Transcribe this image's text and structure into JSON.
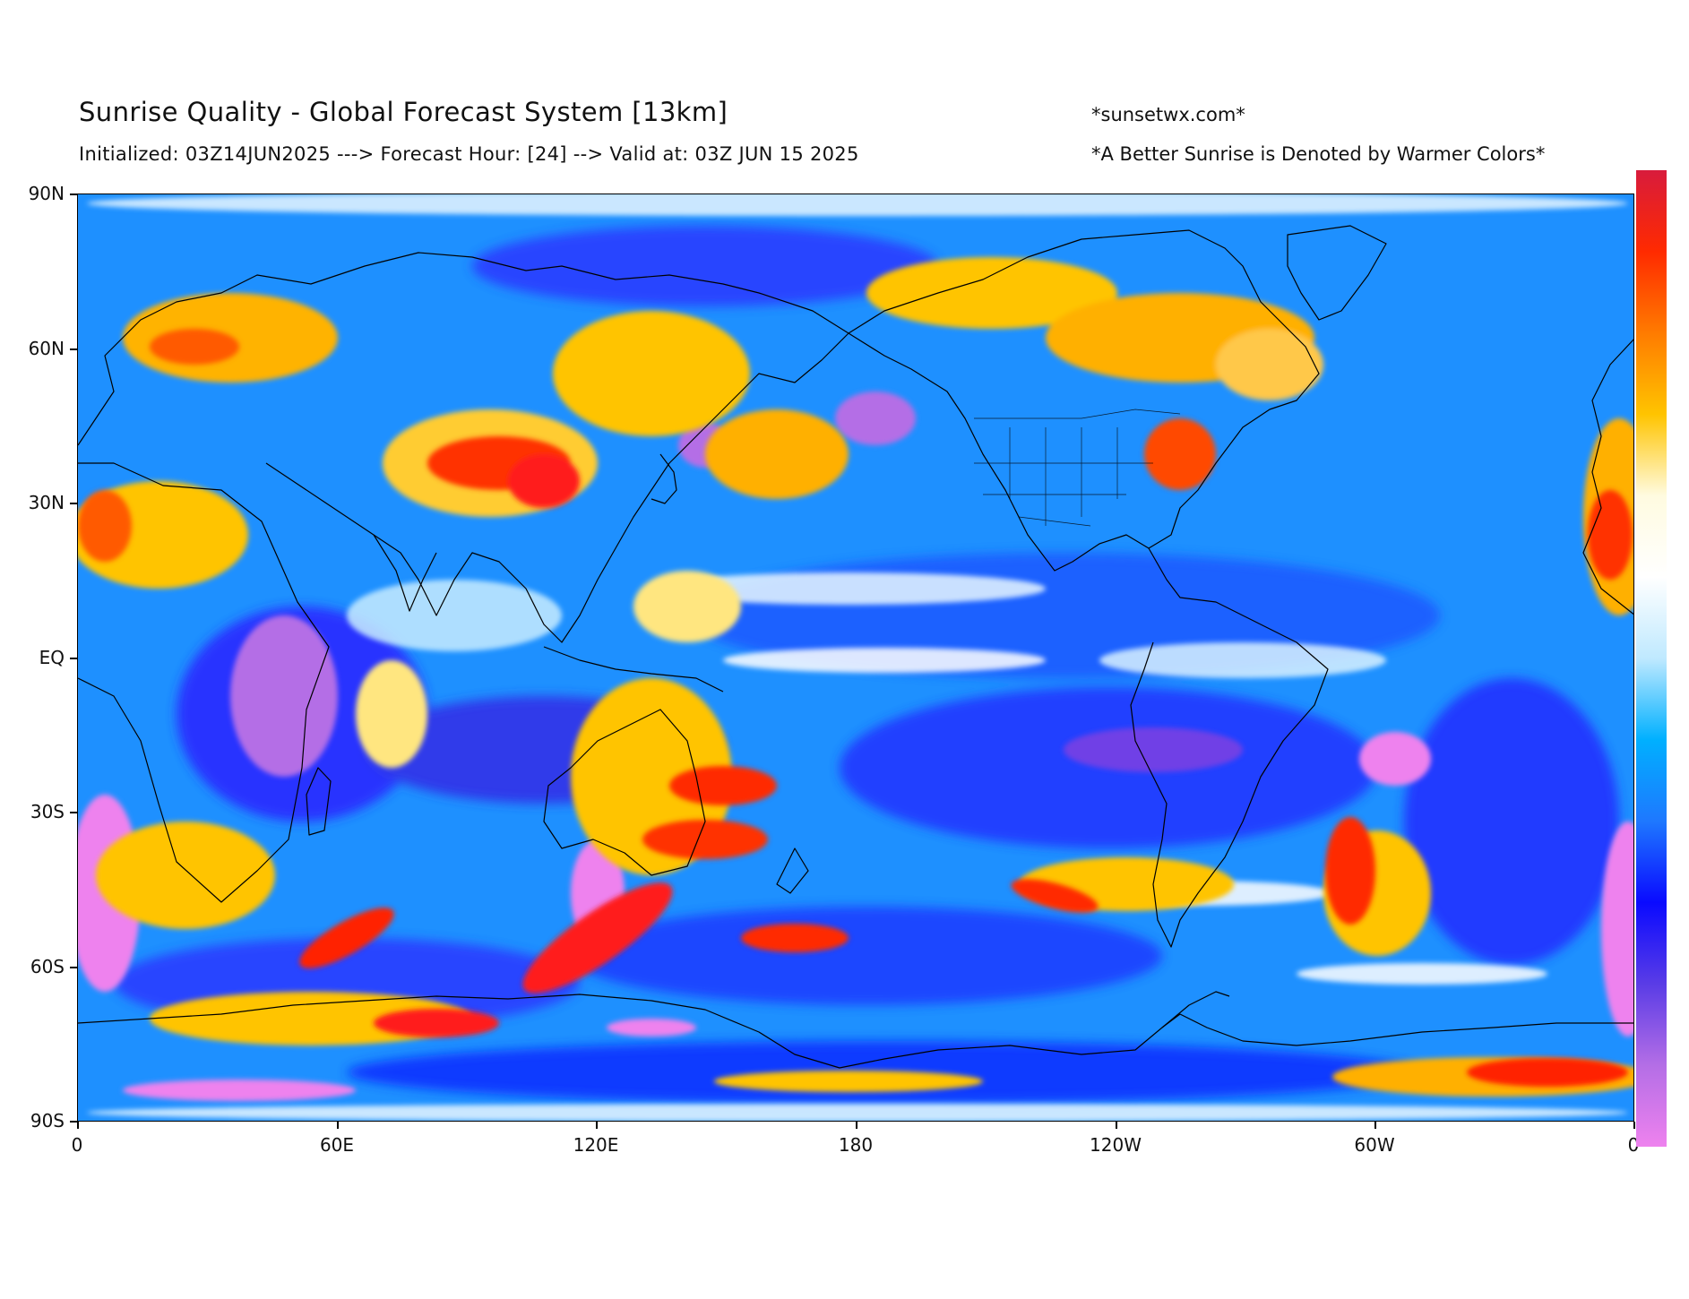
{
  "header": {
    "title": "Sunrise Quality - Global Forecast System [13km]",
    "subtitle": "Initialized: 03Z14JUN2025 ---> Forecast Hour: [24] --> Valid at: 03Z JUN 15 2025",
    "site": "*sunsetwx.com*",
    "note": "*A Better Sunrise is Denoted by Warmer Colors*"
  },
  "axes": {
    "y_labels": [
      "90N",
      "60N",
      "30N",
      "EQ",
      "30S",
      "60S",
      "90S"
    ],
    "x_labels": [
      "0",
      "60E",
      "120E",
      "180",
      "120W",
      "60W",
      "0"
    ]
  },
  "map": {
    "projection": "equirectangular",
    "lon_range": [
      0,
      360
    ],
    "lat_range": [
      -90,
      90
    ],
    "base_color": "#1e90ff",
    "coastline_color": "#000000"
  },
  "colorbar": {
    "orientation": "vertical",
    "stops": [
      "#d81b3c",
      "#ff2a00",
      "#ff7b00",
      "#ffc400",
      "#fffbe0",
      "#ffffff",
      "#bfe9ff",
      "#00b0ff",
      "#1e78ff",
      "#0a0aff",
      "#5a3ce6",
      "#b46ee6",
      "#ee82ee"
    ]
  }
}
